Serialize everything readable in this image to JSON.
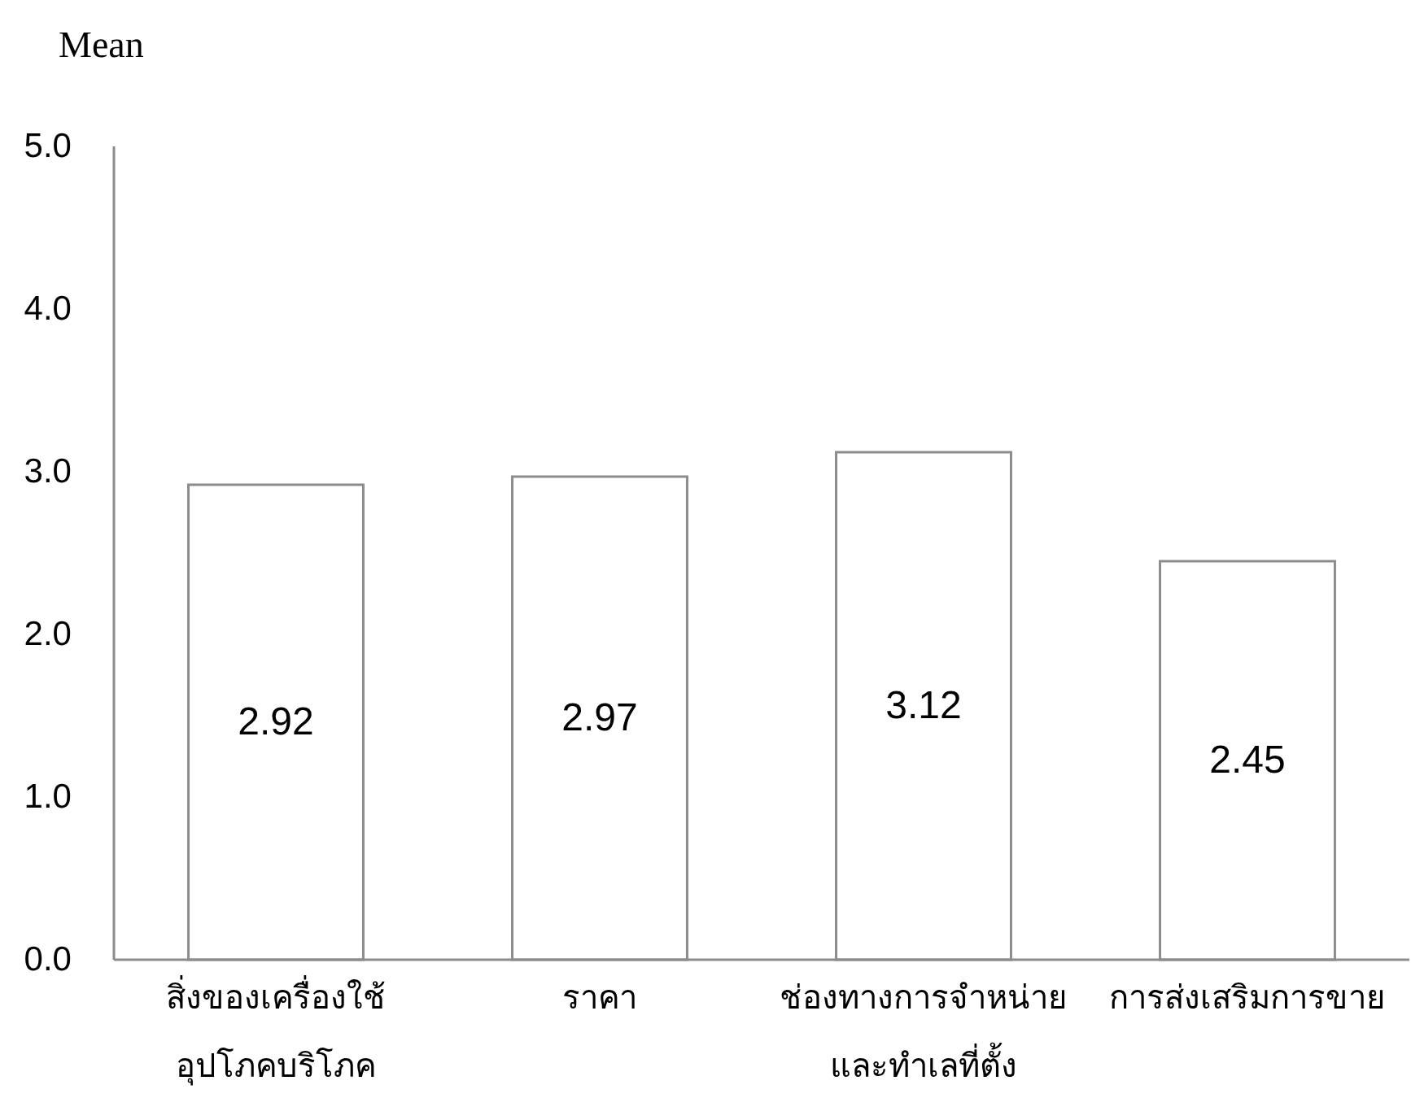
{
  "chart_data": {
    "type": "bar",
    "ylabel": "Mean",
    "categories": [
      "สิ่งของเครื่องใช้\nอุปโภคบริโภค",
      "ราคา",
      "ช่องทางการจำหน่าย\nและทำเลที่ตั้ง",
      "การส่งเสริมการขาย"
    ],
    "values": [
      2.92,
      2.97,
      3.12,
      2.45
    ],
    "color": "#ffffff",
    "ylim": [
      0,
      5
    ],
    "yticks": [
      {
        "value": 0,
        "label": "0.0"
      },
      {
        "value": 1,
        "label": "1.0"
      },
      {
        "value": 2,
        "label": "2.0"
      },
      {
        "value": 3,
        "label": "3.0"
      },
      {
        "value": 4,
        "label": "4.0"
      },
      {
        "value": 5,
        "label": "5.0"
      }
    ],
    "data_labels": true
  }
}
